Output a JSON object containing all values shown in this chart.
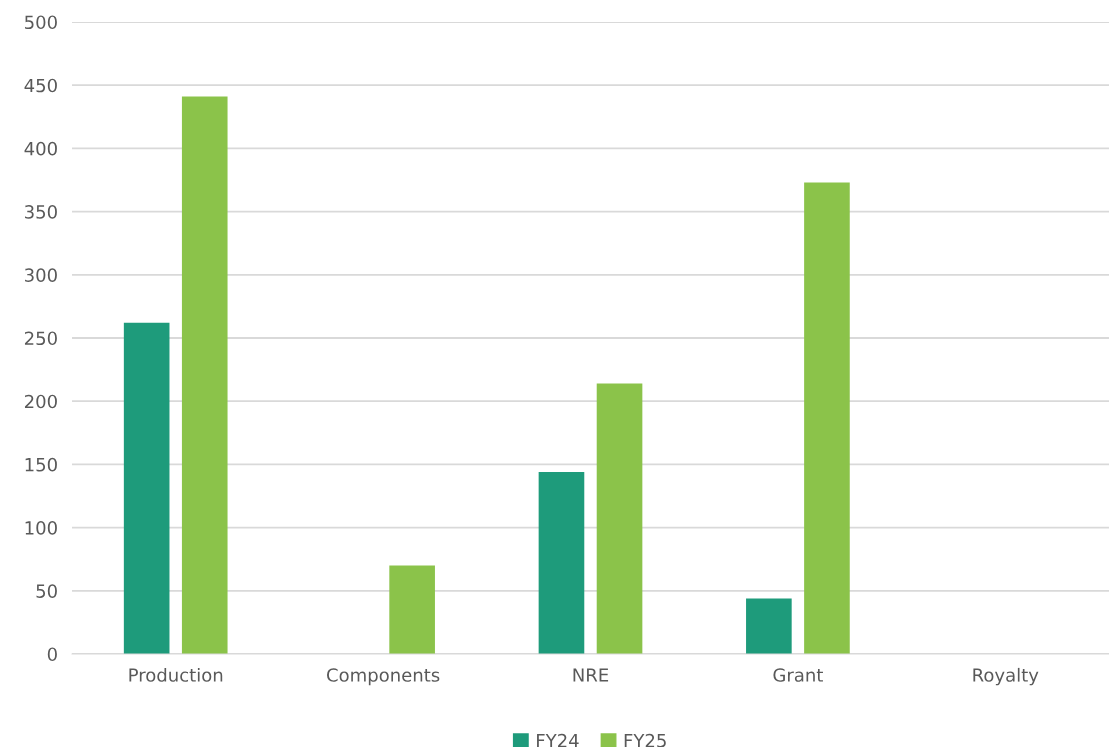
{
  "chart_data": {
    "type": "bar",
    "categories": [
      "Production",
      "Components",
      "NRE",
      "Grant",
      "Royalty"
    ],
    "series": [
      {
        "name": "FY24",
        "color": "#1e9b7b",
        "values": [
          262,
          0,
          144,
          44,
          null
        ]
      },
      {
        "name": "FY25",
        "color": "#8bc34a",
        "values": [
          441,
          70,
          214,
          373,
          null
        ]
      }
    ],
    "ylim": [
      0,
      500
    ],
    "yticks": [
      0,
      50,
      100,
      150,
      200,
      250,
      300,
      350,
      400,
      450,
      500
    ],
    "grid": "y",
    "legend": "bottom"
  }
}
